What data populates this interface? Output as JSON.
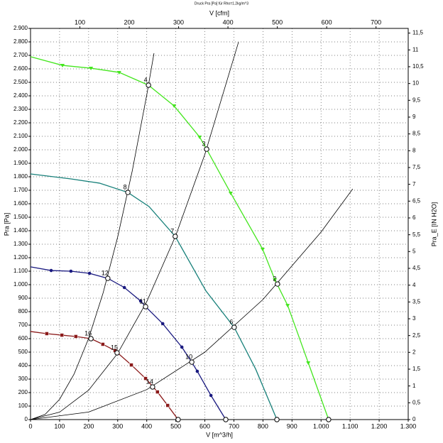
{
  "chart_data": {
    "type": "line",
    "title": "Druck Pra [Pa] für Rho=1.2kg/m^3",
    "x_label": "V [m^3/h]",
    "x2_label": "V [cfm]",
    "y_label": "Pra [Pa]",
    "y2_label": "Pra_E [IN H2O]",
    "xlim": [
      0,
      1300
    ],
    "xticks": [
      0,
      100,
      200,
      300,
      400,
      500,
      600,
      700,
      800,
      900,
      {
        "value": 1000,
        "label": "1.000"
      },
      {
        "value": 1100,
        "label": "1.100"
      },
      {
        "value": 1200,
        "label": "1.200"
      },
      {
        "value": 1300,
        "label": "1.300"
      }
    ],
    "x2lim": [
      0,
      765.2
    ],
    "x2ticks": [
      100,
      200,
      300,
      400,
      500,
      600,
      700
    ],
    "ylim": [
      0,
      2900
    ],
    "yticks": [
      0,
      100,
      200,
      300,
      400,
      500,
      600,
      700,
      800,
      900,
      {
        "value": 1000,
        "label": "1.000"
      },
      {
        "value": 1100,
        "label": "1.100"
      },
      {
        "value": 1200,
        "label": "1.200"
      },
      {
        "value": 1300,
        "label": "1.300"
      },
      {
        "value": 1400,
        "label": "1.400"
      },
      {
        "value": 1500,
        "label": "1.500"
      },
      {
        "value": 1600,
        "label": "1.600"
      },
      {
        "value": 1700,
        "label": "1.700"
      },
      {
        "value": 1800,
        "label": "1.800"
      },
      {
        "value": 1900,
        "label": "1.900"
      },
      {
        "value": 2000,
        "label": "2.000"
      },
      {
        "value": 2100,
        "label": "2.100"
      },
      {
        "value": 2200,
        "label": "2.200"
      },
      {
        "value": 2300,
        "label": "2.300"
      },
      {
        "value": 2400,
        "label": "2.400"
      },
      {
        "value": 2500,
        "label": "2.500"
      },
      {
        "value": 2600,
        "label": "2.600"
      },
      {
        "value": 2700,
        "label": "2.700"
      },
      {
        "value": 2800,
        "label": "2.800"
      },
      {
        "value": 2900,
        "label": "2.900"
      }
    ],
    "y2lim": [
      0,
      11.64
    ],
    "y2ticks": [
      0,
      {
        "value": 0.5,
        "label": "0,5"
      },
      1,
      {
        "value": 1.5,
        "label": "1,5"
      },
      2,
      {
        "value": 2.5,
        "label": "2,5"
      },
      3,
      {
        "value": 3.5,
        "label": "3,5"
      },
      4,
      {
        "value": 4.5,
        "label": "4,5"
      },
      5,
      {
        "value": 5.5,
        "label": "5,5"
      },
      6,
      {
        "value": 6.5,
        "label": "6,5"
      },
      7,
      {
        "value": 7.5,
        "label": "7,5"
      },
      8,
      {
        "value": 8.5,
        "label": "8,5"
      },
      9,
      {
        "value": 9.5,
        "label": "9,5"
      },
      10,
      {
        "value": 10.5,
        "label": "10,5"
      },
      11,
      {
        "value": 11.5,
        "label": "11,5"
      }
    ],
    "grid": true,
    "series": [
      {
        "color": "#44e61e",
        "marker": "triangle",
        "x": [
          0,
          110,
          208,
          305,
          406,
          494,
          582,
          606,
          689,
          799,
          841,
          885,
          956,
          1026
        ],
        "values": [
          2690,
          2626,
          2605,
          2574,
          2479,
          2326,
          2095,
          2005,
          1679,
          1263,
          1037,
          847,
          421,
          0
        ]
      },
      {
        "color": "#17807a",
        "marker": "none",
        "x": [
          0,
          139,
          237,
          335,
          408,
          498,
          604,
          701,
          775,
          848
        ],
        "values": [
          1821,
          1784,
          1753,
          1684,
          1579,
          1358,
          953,
          684,
          374,
          0
        ]
      },
      {
        "color": "#1a1a80",
        "marker": "circle",
        "x": [
          0,
          71,
          139,
          203,
          266,
          323,
          379,
          396,
          455,
          521,
          555,
          574,
          621,
          672
        ],
        "values": [
          1132,
          1105,
          1100,
          1084,
          1047,
          979,
          879,
          837,
          711,
          537,
          426,
          358,
          179,
          0
        ]
      },
      {
        "color": "#8b1a1a",
        "marker": "square",
        "x": [
          0,
          56,
          108,
          156,
          208,
          249,
          291,
          347,
          396,
          437,
          472,
          508
        ],
        "values": [
          653,
          637,
          626,
          616,
          600,
          558,
          511,
          405,
          305,
          205,
          105,
          0
        ]
      },
      {
        "color": "#000000",
        "marker": "none",
        "x": [
          0,
          50,
          100,
          150,
          200,
          250,
          300,
          350,
          400,
          425
        ],
        "values": [
          0,
          38,
          150,
          338,
          602,
          940,
          1354,
          1842,
          2406,
          2716
        ]
      },
      {
        "color": "#000000",
        "marker": "none",
        "x": [
          0,
          100,
          200,
          300,
          400,
          500,
          600,
          716
        ],
        "values": [
          0,
          55,
          218,
          491,
          874,
          1365,
          1966,
          2799
        ]
      },
      {
        "color": "#000000",
        "marker": "none",
        "x": [
          0,
          200,
          400,
          600,
          800,
          1000,
          1109
        ],
        "values": [
          0,
          56,
          222,
          500,
          890,
          1390,
          1710
        ]
      }
    ],
    "points": [
      {
        "x": 406,
        "y": 2479,
        "label": "4"
      },
      {
        "x": 606,
        "y": 2005,
        "label": "3"
      },
      {
        "x": 850,
        "y": 1005,
        "label": "2"
      },
      {
        "x": 335,
        "y": 1684,
        "label": "8"
      },
      {
        "x": 498,
        "y": 1358,
        "label": "7"
      },
      {
        "x": 701,
        "y": 684,
        "label": "6"
      },
      {
        "x": 266,
        "y": 1047,
        "label": "12"
      },
      {
        "x": 396,
        "y": 837,
        "label": "11"
      },
      {
        "x": 555,
        "y": 426,
        "label": "10"
      },
      {
        "x": 208,
        "y": 600,
        "label": "16"
      },
      {
        "x": 298,
        "y": 495,
        "label": "15"
      },
      {
        "x": 420,
        "y": 242,
        "label": "14"
      },
      {
        "x": 508,
        "y": 0
      },
      {
        "x": 672,
        "y": 0
      },
      {
        "x": 848,
        "y": 0
      },
      {
        "x": 1026,
        "y": 0
      }
    ]
  }
}
